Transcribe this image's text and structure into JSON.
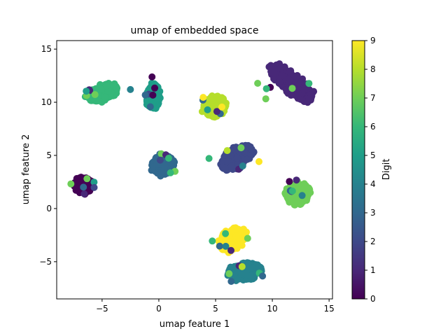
{
  "chart_data": {
    "type": "scatter",
    "title": "umap of embedded space",
    "xlabel": "umap feature 1",
    "ylabel": "umap feature 2",
    "xlim": [
      -9,
      15.3
    ],
    "ylim": [
      -8.5,
      15.8
    ],
    "xticks": [
      -5,
      0,
      5,
      10,
      15
    ],
    "yticks": [
      -5,
      0,
      5,
      10,
      15
    ],
    "grid": false,
    "legend": "none",
    "colorbar": {
      "label": "Digit",
      "range": [
        0,
        9
      ],
      "ticks": [
        0,
        1,
        2,
        3,
        4,
        5,
        6,
        7,
        8,
        9
      ],
      "colormap": "viridis",
      "stops": [
        "#440154",
        "#482878",
        "#3e4989",
        "#31688e",
        "#26828e",
        "#1f9e89",
        "#35b779",
        "#6ece58",
        "#b5de2b",
        "#fde725"
      ]
    },
    "clusters": [
      {
        "digit": 0,
        "center": [
          -6.6,
          2.2
        ],
        "spread": [
          0.75,
          0.7
        ],
        "angle": 0
      },
      {
        "digit": 1,
        "center": [
          11.7,
          11.8
        ],
        "spread": [
          2.5,
          0.85
        ],
        "angle": -42
      },
      {
        "digit": 2,
        "center": [
          6.9,
          4.8
        ],
        "spread": [
          1.6,
          0.9
        ],
        "angle": 35
      },
      {
        "digit": 3,
        "center": [
          0.4,
          4.1
        ],
        "spread": [
          0.95,
          0.9
        ],
        "angle": 0
      },
      {
        "digit": 4,
        "center": [
          7.6,
          -5.9
        ],
        "spread": [
          1.45,
          0.8
        ],
        "angle": 10
      },
      {
        "digit": 5,
        "center": [
          -0.5,
          10.6
        ],
        "spread": [
          0.55,
          1.15
        ],
        "angle": 0
      },
      {
        "digit": 6,
        "center": [
          -5.0,
          10.9
        ],
        "spread": [
          1.45,
          0.7
        ],
        "angle": 20
      },
      {
        "digit": 7,
        "center": [
          12.2,
          1.4
        ],
        "spread": [
          1.1,
          0.95
        ],
        "angle": 25
      },
      {
        "digit": 8,
        "center": [
          4.9,
          9.6
        ],
        "spread": [
          1.0,
          0.9
        ],
        "angle": 30
      },
      {
        "digit": 9,
        "center": [
          6.5,
          -2.9
        ],
        "spread": [
          1.3,
          0.85
        ],
        "angle": 40
      }
    ]
  }
}
